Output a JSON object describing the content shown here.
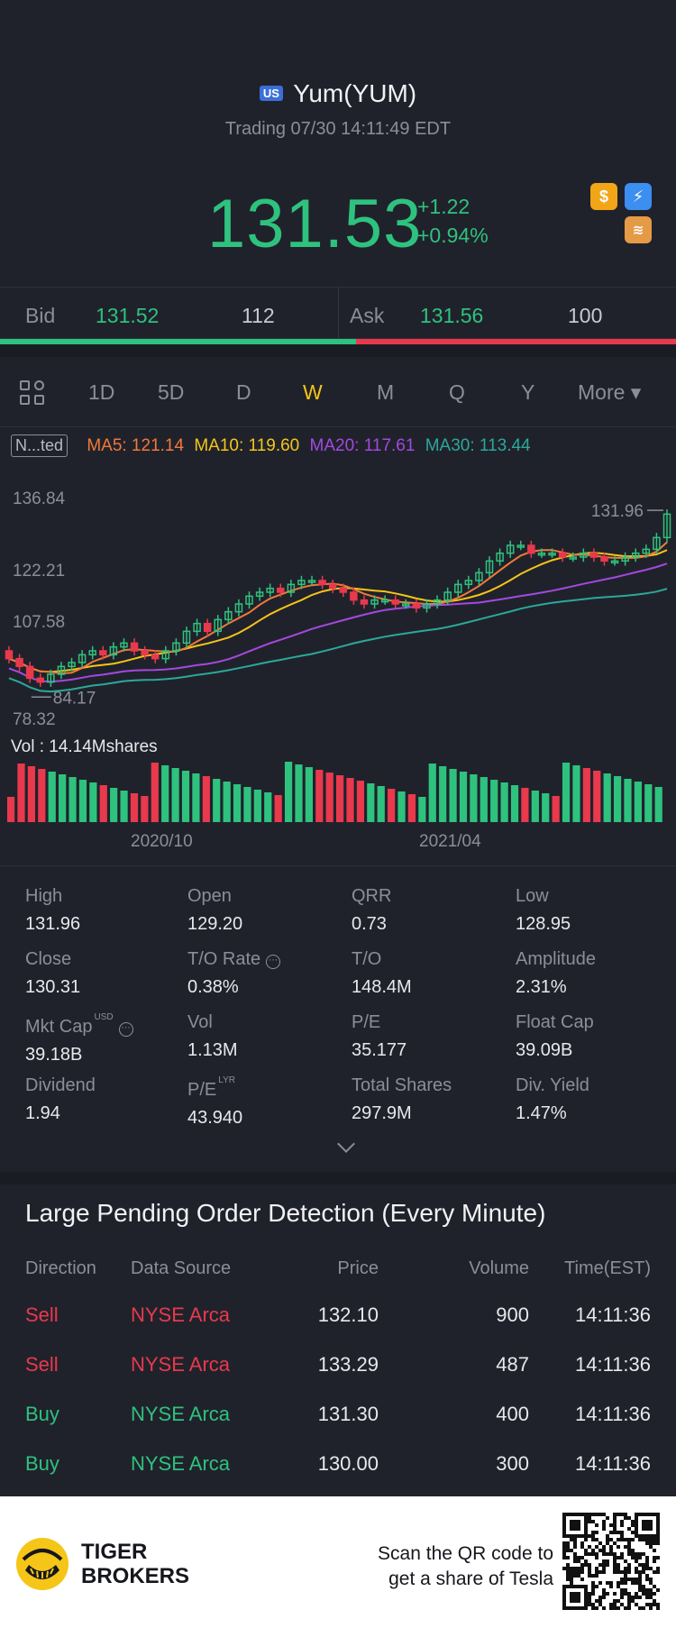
{
  "header": {
    "market_badge": "US",
    "title": "Yum(YUM)",
    "status": "Trading 07/30 14:11:49 EDT",
    "price": "131.53",
    "change": "+1.22",
    "change_pct": "+0.94%",
    "icons": [
      "dollar-icon",
      "flash-icon",
      "stack-icon"
    ]
  },
  "quote": {
    "bid_label": "Bid",
    "bid_price": "131.52",
    "bid_size": "112",
    "ask_label": "Ask",
    "ask_price": "131.56",
    "ask_size": "100"
  },
  "periods": [
    "1D",
    "5D",
    "D",
    "W",
    "M",
    "Q",
    "Y"
  ],
  "active_period": "W",
  "more_label": "More ▾",
  "indicator_tag": "N...ted",
  "ma": {
    "ma5": "MA5: 121.14",
    "ma10": "MA10: 119.60",
    "ma20": "MA20: 117.61",
    "ma30": "MA30: 113.44"
  },
  "colors": {
    "up": "#2ec27e",
    "down": "#e8394d",
    "ma5": "#f07a3a",
    "ma10": "#f5c518",
    "ma20": "#a349e0",
    "ma30": "#2aa99a"
  },
  "chart": {
    "y_labels": [
      "136.84",
      "122.21",
      "107.58",
      "78.32"
    ],
    "max_marker": "131.96",
    "min_marker": "84.17",
    "vol_label": "Vol  : 14.14Mshares",
    "x_labels": [
      "2020/10",
      "2021/04"
    ]
  },
  "chart_data": {
    "type": "candlestick",
    "period": "weekly",
    "y_ticks": [
      136.84,
      122.21,
      107.58,
      78.32
    ],
    "x_ticks": [
      "2020/10",
      "2021/04"
    ],
    "max": 131.96,
    "min": 84.17,
    "closes": [
      94,
      92,
      89,
      88,
      90,
      92,
      93,
      95,
      96,
      95,
      97,
      98,
      96,
      95,
      94,
      96,
      98,
      101,
      103,
      101,
      104,
      106,
      108,
      110,
      111,
      112,
      111,
      113,
      114,
      114,
      113,
      112,
      111,
      109,
      108,
      109,
      109,
      108,
      108,
      107,
      108,
      109,
      111,
      113,
      114,
      116,
      119,
      121,
      123,
      123,
      121,
      121,
      121,
      120,
      120,
      121,
      120,
      119,
      119,
      120,
      121,
      122,
      125,
      131
    ],
    "ma5_last": 121.14,
    "ma10_last": 119.6,
    "ma20_last": 117.61,
    "ma30_last": 113.44
  },
  "stats": [
    {
      "k": "High",
      "v": "131.96"
    },
    {
      "k": "Open",
      "v": "129.20"
    },
    {
      "k": "QRR",
      "v": "0.73"
    },
    {
      "k": "Low",
      "v": "128.95"
    },
    {
      "k": "Close",
      "v": "130.31"
    },
    {
      "k": "T/O Rate",
      "v": "0.38%"
    },
    {
      "k": "T/O",
      "v": "148.4M"
    },
    {
      "k": "Amplitude",
      "v": "2.31%"
    },
    {
      "k": "Mkt Cap",
      "v": "39.18B",
      "sup": "USD"
    },
    {
      "k": "Vol",
      "v": "1.13M"
    },
    {
      "k": "P/E",
      "v": "35.177"
    },
    {
      "k": "Float Cap",
      "v": "39.09B"
    },
    {
      "k": "Dividend",
      "v": "1.94"
    },
    {
      "k": "P/E",
      "v": "43.940",
      "sup": "LYR"
    },
    {
      "k": "Total Shares",
      "v": "297.9M"
    },
    {
      "k": "Div. Yield",
      "v": "1.47%"
    }
  ],
  "orders": {
    "title": "Large Pending Order Detection (Every Minute)",
    "columns": [
      "Direction",
      "Data Source",
      "Price",
      "Volume",
      "Time(EST)"
    ],
    "rows": [
      {
        "dir": "Sell",
        "src": "NYSE Arca",
        "price": "132.10",
        "vol": "900",
        "time": "14:11:36"
      },
      {
        "dir": "Sell",
        "src": "NYSE Arca",
        "price": "133.29",
        "vol": "487",
        "time": "14:11:36"
      },
      {
        "dir": "Buy",
        "src": "NYSE Arca",
        "price": "131.30",
        "vol": "400",
        "time": "14:11:36"
      },
      {
        "dir": "Buy",
        "src": "NYSE Arca",
        "price": "130.00",
        "vol": "300",
        "time": "14:11:36"
      }
    ]
  },
  "footer": {
    "brand_line1": "TIGER",
    "brand_line2": "BROKERS",
    "scan_line1": "Scan the QR code to",
    "scan_line2": "get a share of Tesla"
  }
}
